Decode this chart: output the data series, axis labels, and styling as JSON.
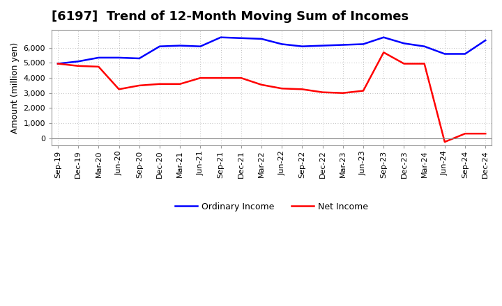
{
  "title": "[6197]  Trend of 12-Month Moving Sum of Incomes",
  "ylabel": "Amount (million yen)",
  "legend_ordinary": "Ordinary Income",
  "legend_net": "Net Income",
  "ordinary_color": "#0000FF",
  "net_color": "#FF0000",
  "background_color": "#FFFFFF",
  "grid_color": "#AAAAAA",
  "ylim": [
    -500,
    7200
  ],
  "yticks": [
    0,
    1000,
    2000,
    3000,
    4000,
    5000,
    6000
  ],
  "labels": [
    "Sep-19",
    "Dec-19",
    "Mar-20",
    "Jun-20",
    "Sep-20",
    "Dec-20",
    "Mar-21",
    "Jun-21",
    "Sep-21",
    "Dec-21",
    "Mar-22",
    "Jun-22",
    "Sep-22",
    "Dec-22",
    "Mar-23",
    "Jun-23",
    "Sep-23",
    "Dec-23",
    "Mar-24",
    "Jun-24",
    "Sep-24",
    "Dec-24"
  ],
  "ordinary_income": [
    4950,
    5100,
    5350,
    5350,
    5300,
    6100,
    6150,
    6100,
    6700,
    6650,
    6600,
    6250,
    6100,
    6150,
    6200,
    6250,
    6700,
    6300,
    6100,
    5600,
    5600,
    6500
  ],
  "net_income": [
    4950,
    4800,
    4750,
    3250,
    3500,
    3600,
    3600,
    4000,
    4000,
    4000,
    3550,
    3300,
    3250,
    3050,
    3000,
    3150,
    5700,
    4950,
    4950,
    -250,
    300,
    300
  ],
  "line_width": 1.8,
  "title_fontsize": 13,
  "axis_fontsize": 9,
  "tick_fontsize": 8
}
